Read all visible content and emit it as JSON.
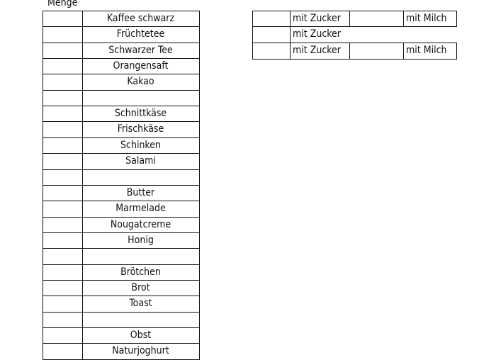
{
  "header": {
    "menge_label": "Menge"
  },
  "items": [
    "Kaffee schwarz",
    "Früchtetee",
    "Schwarzer Tee",
    "Orangensaft",
    "Kakao",
    "",
    "Schnittkäse",
    "Frischkäse",
    "Schinken",
    "Salami",
    "",
    "Butter",
    "Marmelade",
    "Nougatcreme",
    "Honig",
    "",
    "Brötchen",
    "Brot",
    "Toast",
    "",
    "Obst",
    "Naturjoghurt"
  ],
  "options": [
    [
      "",
      "mit Zucker",
      "",
      "mit Milch"
    ],
    [
      "",
      "mit Zucker",
      null,
      null
    ],
    [
      "",
      "mit Zucker",
      "",
      "mit Milch"
    ]
  ]
}
